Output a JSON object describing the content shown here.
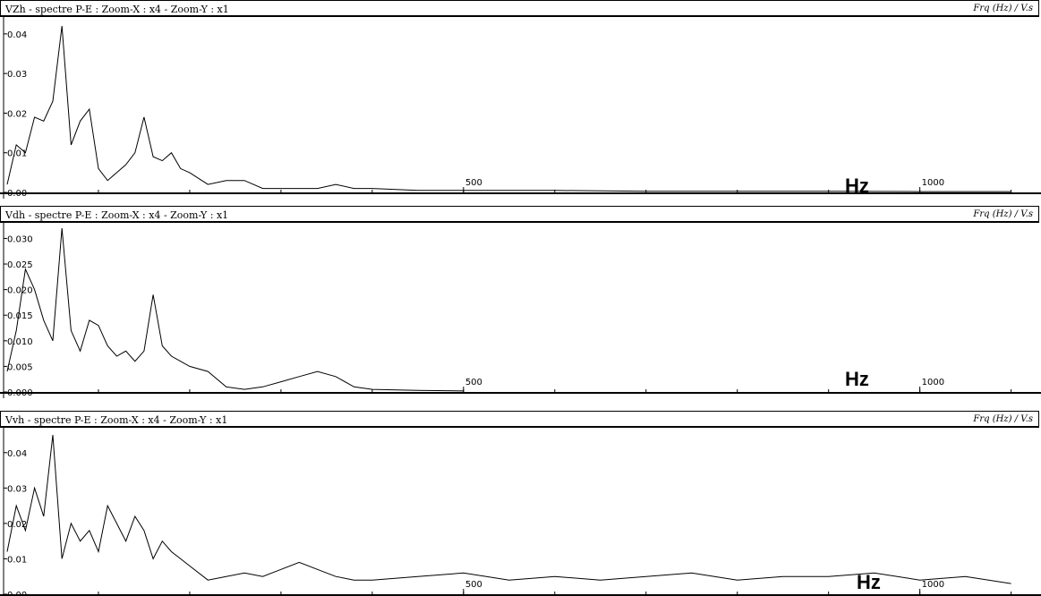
{
  "panels": [
    {
      "title": "VZh - spectre P-E :  Zoom-X : x4 - Zoom-Y : x1",
      "units": "Frq (Hz) / V.s",
      "hz_label": "Hz"
    },
    {
      "title": "Vdh - spectre P-E :  Zoom-X : x4 - Zoom-Y : x1",
      "units": "Frq (Hz) / V.s",
      "hz_label": "Hz"
    },
    {
      "title": "Vvh - spectre P-E :  Zoom-X : x4 - Zoom-Y : x1",
      "units": "Frq (Hz) / V.s",
      "hz_label": "Hz"
    }
  ],
  "chart_data": [
    {
      "type": "line",
      "title": "VZh - spectre P-E :  Zoom-X : x4 - Zoom-Y : x1",
      "xlabel": "Hz",
      "ylabel": "Frq (Hz) / V.s",
      "xlim": [
        0,
        1120
      ],
      "ylim": [
        0,
        0.042
      ],
      "x_ticks": [
        500,
        1000
      ],
      "x_tick_labels": [
        "500",
        "1000"
      ],
      "y_ticks": [
        0.0,
        0.01,
        0.02,
        0.03,
        0.04
      ],
      "y_tick_labels": [
        "0.00",
        "0.01",
        "0.02",
        "0.03",
        "0.04"
      ],
      "grid": false,
      "series": [
        {
          "x": [
            0,
            10,
            20,
            30,
            40,
            50,
            60,
            70,
            80,
            90,
            100,
            110,
            120,
            130,
            140,
            150,
            160,
            170,
            180,
            190,
            200,
            220,
            240,
            260,
            280,
            300,
            320,
            340,
            360,
            380,
            400,
            450,
            500,
            600,
            700,
            800,
            900,
            1000,
            1100
          ],
          "values": [
            0.002,
            0.012,
            0.01,
            0.019,
            0.018,
            0.023,
            0.042,
            0.012,
            0.018,
            0.021,
            0.006,
            0.003,
            0.005,
            0.007,
            0.01,
            0.019,
            0.009,
            0.008,
            0.01,
            0.006,
            0.005,
            0.002,
            0.003,
            0.003,
            0.001,
            0.001,
            0.001,
            0.001,
            0.002,
            0.001,
            0.001,
            0.0005,
            0.0005,
            0.0005,
            0.0003,
            0.0003,
            0.0003,
            0.0002,
            0.0002
          ]
        }
      ]
    },
    {
      "type": "line",
      "title": "Vdh - spectre P-E :  Zoom-X : x4 - Zoom-Y : x1",
      "xlabel": "Hz",
      "ylabel": "Frq (Hz) / V.s",
      "xlim": [
        0,
        1120
      ],
      "ylim": [
        0,
        0.032
      ],
      "x_ticks": [
        500,
        1000
      ],
      "x_tick_labels": [
        "500",
        "1000"
      ],
      "y_ticks": [
        0.0,
        0.005,
        0.01,
        0.015,
        0.02,
        0.025,
        0.03
      ],
      "y_tick_labels": [
        "0.000",
        "0.005",
        "0.010",
        "0.015",
        "0.020",
        "0.025",
        "0.030"
      ],
      "grid": false,
      "series": [
        {
          "x": [
            0,
            10,
            20,
            30,
            40,
            50,
            60,
            70,
            80,
            90,
            100,
            110,
            120,
            130,
            140,
            150,
            160,
            170,
            180,
            190,
            200,
            220,
            240,
            260,
            280,
            300,
            320,
            340,
            360,
            380,
            400,
            450,
            500
          ],
          "values": [
            0.004,
            0.012,
            0.024,
            0.02,
            0.014,
            0.01,
            0.032,
            0.012,
            0.008,
            0.014,
            0.013,
            0.009,
            0.007,
            0.008,
            0.006,
            0.008,
            0.019,
            0.009,
            0.007,
            0.006,
            0.005,
            0.004,
            0.001,
            0.0005,
            0.001,
            0.002,
            0.003,
            0.004,
            0.003,
            0.001,
            0.0005,
            0.0003,
            0.0002
          ]
        }
      ]
    },
    {
      "type": "line",
      "title": "Vvh - spectre P-E :  Zoom-X : x4 - Zoom-Y : x1",
      "xlabel": "Hz",
      "ylabel": "Frq (Hz) / V.s",
      "xlim": [
        0,
        1120
      ],
      "ylim": [
        0,
        0.045
      ],
      "x_ticks": [
        500,
        1000
      ],
      "x_tick_labels": [
        "500",
        "1000"
      ],
      "y_ticks": [
        0.0,
        0.01,
        0.02,
        0.03,
        0.04
      ],
      "y_tick_labels": [
        "0.00",
        "0.01",
        "0.02",
        "0.03",
        "0.04"
      ],
      "grid": false,
      "series": [
        {
          "x": [
            0,
            10,
            20,
            30,
            40,
            50,
            60,
            70,
            80,
            90,
            100,
            110,
            120,
            130,
            140,
            150,
            160,
            170,
            180,
            190,
            200,
            220,
            240,
            260,
            280,
            300,
            320,
            340,
            360,
            380,
            400,
            450,
            500,
            550,
            600,
            650,
            700,
            750,
            800,
            850,
            900,
            950,
            1000,
            1050,
            1100
          ],
          "values": [
            0.012,
            0.025,
            0.018,
            0.03,
            0.022,
            0.045,
            0.01,
            0.02,
            0.015,
            0.018,
            0.012,
            0.025,
            0.02,
            0.015,
            0.022,
            0.018,
            0.01,
            0.015,
            0.012,
            0.01,
            0.008,
            0.004,
            0.005,
            0.006,
            0.005,
            0.007,
            0.009,
            0.007,
            0.005,
            0.004,
            0.004,
            0.005,
            0.006,
            0.004,
            0.005,
            0.004,
            0.005,
            0.006,
            0.004,
            0.005,
            0.005,
            0.006,
            0.004,
            0.005,
            0.003
          ]
        }
      ]
    }
  ]
}
